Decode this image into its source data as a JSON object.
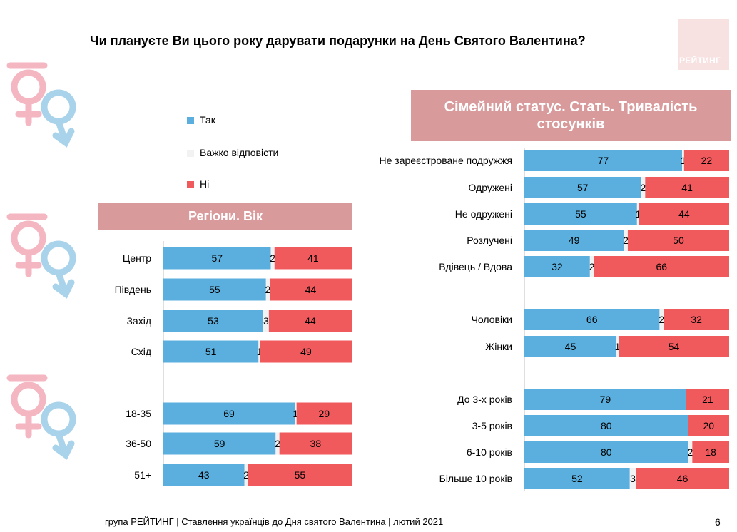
{
  "title": "Чи плануєте Ви цього року дарувати подарунки на День Святого Валентина?",
  "logo_text": "РЕЙТИНГ",
  "legend": [
    {
      "label": "Так",
      "color": "#5aafde"
    },
    {
      "label": "Важко відповісти",
      "color": "#f2f2f2"
    },
    {
      "label": "Ні",
      "color": "#f05a5d"
    }
  ],
  "header_left": "Регіони. Вік",
  "header_right": "Сімейний статус. Стать. Тривалість стосунків",
  "chart_data": [
    {
      "type": "bar",
      "orientation": "horizontal",
      "stacked": true,
      "normalized": true,
      "categories": [
        "Центр",
        "Південь",
        "Захід",
        "Схід",
        "18-35",
        "36-50",
        "51+"
      ],
      "series": [
        {
          "name": "Так",
          "values": [
            57,
            55,
            53,
            51,
            69,
            59,
            43
          ],
          "color": "#5aafde"
        },
        {
          "name": "Важко відповісти",
          "values": [
            2,
            2,
            3,
            1,
            1,
            2,
            2
          ],
          "color": "#f2f2f2"
        },
        {
          "name": "Ні",
          "values": [
            41,
            44,
            44,
            49,
            29,
            38,
            55
          ],
          "color": "#f05a5d"
        }
      ],
      "groups": [
        [
          0,
          1,
          2,
          3
        ],
        [
          4,
          5,
          6
        ]
      ]
    },
    {
      "type": "bar",
      "orientation": "horizontal",
      "stacked": true,
      "normalized": true,
      "categories": [
        "Не зареєстроване подружжя",
        "Одружені",
        "Не одружені",
        "Розлучені",
        "Вдівець / Вдова",
        "Чоловіки",
        "Жінки",
        "До 3-х років",
        "3-5 років",
        "6-10 років",
        "Більше 10 років"
      ],
      "series": [
        {
          "name": "Так",
          "values": [
            77,
            57,
            55,
            49,
            32,
            66,
            45,
            79,
            80,
            80,
            52
          ],
          "color": "#5aafde"
        },
        {
          "name": "Важко відповісти",
          "values": [
            1,
            2,
            1,
            2,
            2,
            2,
            1,
            0,
            0,
            2,
            3
          ],
          "color": "#f2f2f2"
        },
        {
          "name": "Ні",
          "values": [
            22,
            41,
            44,
            50,
            66,
            32,
            54,
            21,
            20,
            18,
            46
          ],
          "color": "#f05a5d"
        }
      ],
      "groups": [
        [
          0,
          1,
          2,
          3,
          4
        ],
        [
          5,
          6
        ],
        [
          7,
          8,
          9,
          10
        ]
      ]
    }
  ],
  "footer": "група РЕЙТИНГ | Ставлення українців до Дня святого Валентина | лютий 2021",
  "page_number": "6"
}
